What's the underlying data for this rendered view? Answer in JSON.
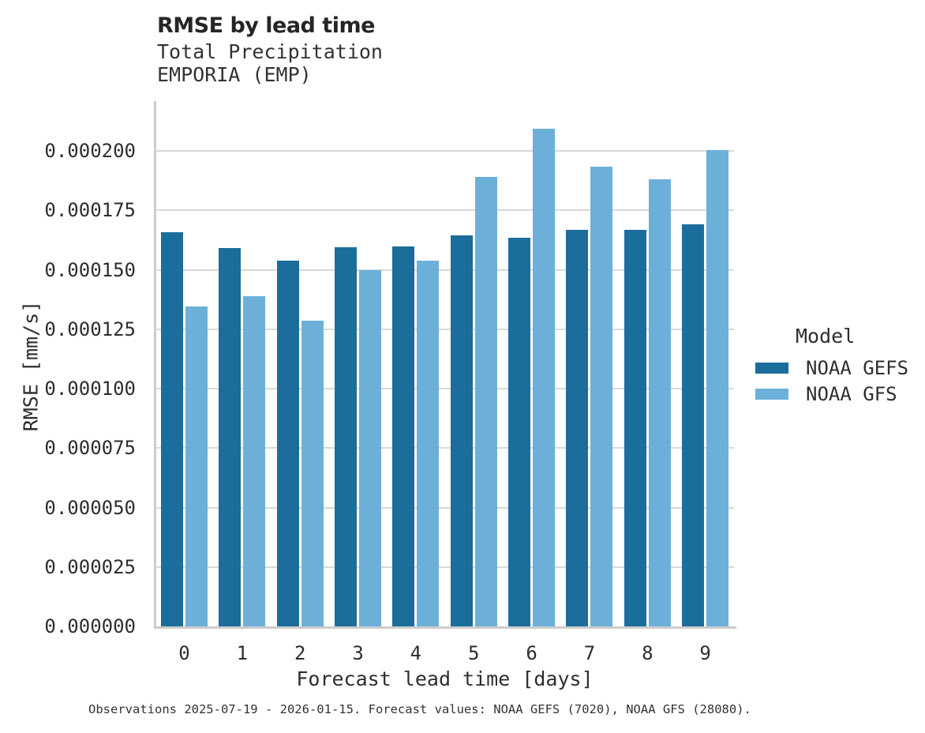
{
  "header": {
    "title": "RMSE by lead time",
    "subtitle1": "Total Precipitation",
    "subtitle2": "EMPORIA (EMP)"
  },
  "legend": {
    "title": "Model",
    "items": [
      {
        "label": "NOAA GEFS",
        "color": "#1b6d9c"
      },
      {
        "label": "NOAA GFS",
        "color": "#6cb0d9"
      }
    ]
  },
  "footer": {
    "note": "Observations 2025-07-19 - 2026-01-15. Forecast values: NOAA GEFS (7020), NOAA GFS (28080)."
  },
  "colors": {
    "gefs_bar": "#1b6d9c",
    "gfs_bar": "#6cb0d9",
    "gridline": "#d9d9d9",
    "axis_line": "#cccccc",
    "title_text": "#252525",
    "body_text": "#2e2e2e"
  },
  "chart_data": {
    "type": "bar",
    "title": "RMSE by lead time",
    "subtitle": [
      "Total Precipitation",
      "EMPORIA (EMP)"
    ],
    "xlabel": "Forecast lead time [days]",
    "ylabel": "RMSE [mm/s]",
    "categories": [
      "0",
      "1",
      "2",
      "3",
      "4",
      "5",
      "6",
      "7",
      "8",
      "9"
    ],
    "series": [
      {
        "name": "NOAA GEFS",
        "color": "#1b6d9c",
        "values": [
          0.0001659,
          0.000159,
          0.0001539,
          0.0001595,
          0.0001597,
          0.0001645,
          0.0001634,
          0.0001668,
          0.0001669,
          0.0001691
        ]
      },
      {
        "name": "NOAA GFS",
        "color": "#6cb0d9",
        "values": [
          0.0001345,
          0.0001389,
          0.0001287,
          0.0001497,
          0.0001538,
          0.000189,
          0.0002094,
          0.0001934,
          0.0001881,
          0.0002003
        ]
      }
    ],
    "ylim": [
      0,
      0.000221
    ],
    "yticks": [
      0,
      2.5e-05,
      5e-05,
      7.5e-05,
      0.0001,
      0.000125,
      0.00015,
      0.000175,
      0.0002
    ],
    "ytick_labels": [
      "0.000000",
      "0.000025",
      "0.000050",
      "0.000075",
      "0.000100",
      "0.000125",
      "0.000150",
      "0.000175",
      "0.000200"
    ],
    "grid": true,
    "legend_position": "right",
    "legend_title": "Model"
  }
}
